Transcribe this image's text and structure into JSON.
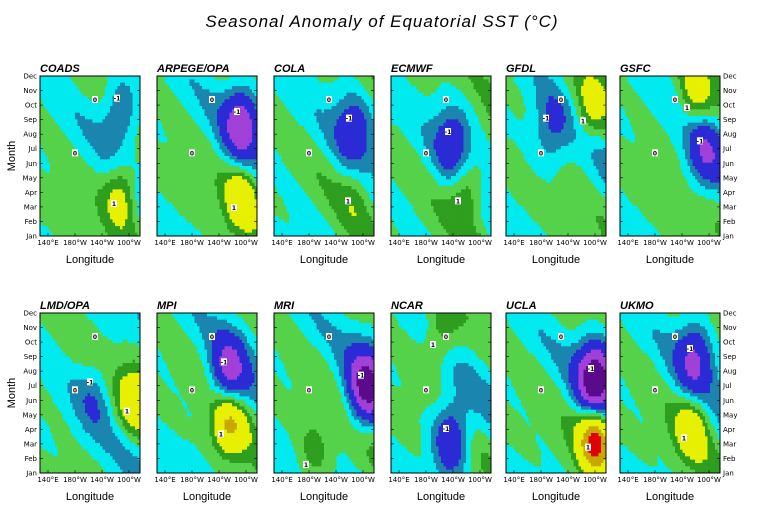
{
  "title": "Seasonal Anomaly of Equatorial SST (°C)",
  "colors": {
    "lt-3": "#5b0a8c",
    "-3to-2": "#a040d8",
    "-2to-1": "#2b2bd6",
    "-1to-0.5": "#1a86b0",
    "-0.5to0": "#00eaf0",
    "0to0.5": "#56d24a",
    "0.5to1": "#2e9e1e",
    "1to2": "#e6f000",
    "gt2": "#c8a800",
    "gt3": "#e00000"
  },
  "chart_data": [
    {
      "type": "heatmap",
      "name": "COADS",
      "xlabel": "Longitude",
      "ylabel": "Month",
      "x_ticks": [
        "140°E",
        "180°W",
        "140°W",
        "100°W"
      ],
      "y_ticks": [
        "Jan",
        "Feb",
        "Mar",
        "Apr",
        "May",
        "Jun",
        "Jul",
        "Aug",
        "Sep",
        "Oct",
        "Nov",
        "Dec"
      ],
      "cold": {
        "lon": 0.82,
        "month": 9.5,
        "amp": -1.3
      },
      "warm": {
        "lon": 0.82,
        "month": 3.3,
        "amp": 1.5
      }
    },
    {
      "type": "heatmap",
      "name": "ARPEGE/OPA",
      "xlabel": "",
      "ylabel": "",
      "x_ticks": [
        "140°E",
        "180°W",
        "140°W",
        "100°W"
      ],
      "y_ticks": [],
      "cold": {
        "lon": 0.85,
        "month": 8.5,
        "amp": -2.5
      },
      "warm": {
        "lon": 0.85,
        "month": 3.0,
        "amp": 1.7
      }
    },
    {
      "type": "heatmap",
      "name": "COLA",
      "xlabel": "Longitude",
      "ylabel": "",
      "x_ticks": [
        "140°E",
        "180°W",
        "140°W",
        "100°W"
      ],
      "y_ticks": [],
      "cold": {
        "lon": 0.8,
        "month": 8.0,
        "amp": -1.5
      },
      "warm": {
        "lon": 0.82,
        "month": 3.5,
        "amp": 0.6
      }
    },
    {
      "type": "heatmap",
      "name": "ECMWF",
      "xlabel": "Longitude",
      "ylabel": "",
      "x_ticks": [
        "140°E",
        "180°W",
        "140°W",
        "100°W"
      ],
      "y_ticks": [],
      "cold": {
        "lon": 0.62,
        "month": 7.0,
        "amp": -1.5
      },
      "warm": {
        "lon": 0.75,
        "month": 3.5,
        "amp": 1.2
      }
    },
    {
      "type": "heatmap",
      "name": "GFDL",
      "xlabel": "Longitude",
      "ylabel": "",
      "x_ticks": [
        "140°E",
        "180°W",
        "140°W",
        "100°W"
      ],
      "y_ticks": [],
      "cold": {
        "lon": 0.45,
        "month": 8.0,
        "amp": -1.0
      },
      "warm": {
        "lon": 0.85,
        "month": 9.5,
        "amp": 1.2
      }
    },
    {
      "type": "heatmap",
      "name": "GSFC",
      "xlabel": "Longitude",
      "ylabel": "",
      "x_ticks": [
        "140°E",
        "180°W",
        "140°W",
        "100°W"
      ],
      "y_ticks": [
        "Jan",
        "Feb",
        "Mar",
        "Apr",
        "May",
        "Jun",
        "Jul",
        "Aug",
        "Sep",
        "Oct",
        "Nov",
        "Dec"
      ],
      "cold": {
        "lon": 0.85,
        "month": 6.3,
        "amp": -1.6
      },
      "warm": {
        "lon": 0.75,
        "month": 10.5,
        "amp": 1.3
      }
    },
    {
      "type": "heatmap",
      "name": "LMD/OPA",
      "xlabel": "Longitude",
      "ylabel": "Month",
      "x_ticks": [
        "140°E",
        "180°W",
        "140°W",
        "100°W"
      ],
      "y_ticks": [
        "Jan",
        "Feb",
        "Mar",
        "Apr",
        "May",
        "Jun",
        "Jul",
        "Aug",
        "Sep",
        "Oct",
        "Nov",
        "Dec"
      ],
      "cold": {
        "lon": 0.55,
        "month": 6.0,
        "amp": -0.8
      },
      "warm": {
        "lon": 0.95,
        "month": 5.5,
        "amp": 1.5
      }
    },
    {
      "type": "heatmap",
      "name": "MPI",
      "xlabel": "Longitude",
      "ylabel": "",
      "x_ticks": [
        "140°E",
        "180°W",
        "140°W",
        "100°W"
      ],
      "y_ticks": [],
      "cold": {
        "lon": 0.72,
        "month": 7.5,
        "amp": -2.3
      },
      "warm": {
        "lon": 0.72,
        "month": 3.8,
        "amp": 2.2
      }
    },
    {
      "type": "heatmap",
      "name": "MRI",
      "xlabel": "Longitude",
      "ylabel": "",
      "x_ticks": [
        "140°E",
        "180°W",
        "140°W",
        "100°W"
      ],
      "y_ticks": [],
      "cold": {
        "lon": 0.92,
        "month": 6.5,
        "amp": -3.2
      },
      "warm": {
        "lon": 0.4,
        "month": 1.5,
        "amp": 0.8
      }
    },
    {
      "type": "heatmap",
      "name": "NCAR",
      "xlabel": "Longitude",
      "ylabel": "",
      "x_ticks": [
        "140°E",
        "180°W",
        "140°W",
        "100°W"
      ],
      "y_ticks": [],
      "cold": {
        "lon": 0.6,
        "month": 2.5,
        "amp": -2.0
      },
      "warm": {
        "lon": 0.5,
        "month": 10.5,
        "amp": 1.0
      }
    },
    {
      "type": "heatmap",
      "name": "UCLA",
      "xlabel": "Longitude",
      "ylabel": "",
      "x_ticks": [
        "140°E",
        "180°W",
        "140°W",
        "100°W"
      ],
      "y_ticks": [],
      "cold": {
        "lon": 0.9,
        "month": 7.0,
        "amp": -4.0
      },
      "warm": {
        "lon": 0.9,
        "month": 2.8,
        "amp": 3.5
      }
    },
    {
      "type": "heatmap",
      "name": "UKMO",
      "xlabel": "Longitude",
      "ylabel": "",
      "x_ticks": [
        "140°E",
        "180°W",
        "140°W",
        "100°W"
      ],
      "y_ticks": [
        "Jan",
        "Feb",
        "Mar",
        "Apr",
        "May",
        "Jun",
        "Jul",
        "Aug",
        "Sep",
        "Oct",
        "Nov",
        "Dec"
      ],
      "cold": {
        "lon": 0.75,
        "month": 8.5,
        "amp": -2.0
      },
      "warm": {
        "lon": 0.72,
        "month": 3.5,
        "amp": 1.6
      }
    }
  ]
}
